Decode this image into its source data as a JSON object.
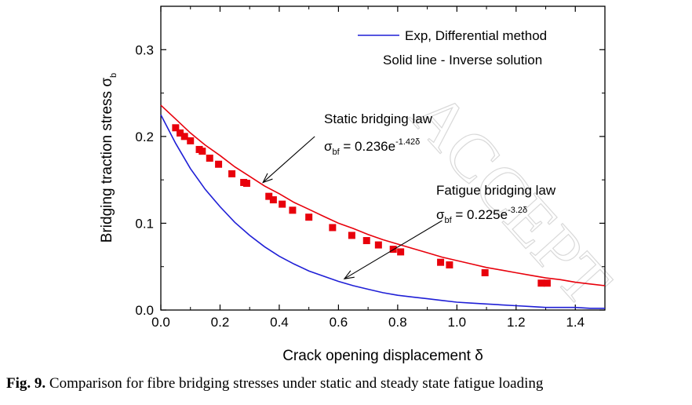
{
  "chart_data": {
    "type": "scatter",
    "xlabel": "Crack opening displacement δ",
    "ylabel": "Bridging traction stress σ",
    "ylabel_sub": "b",
    "xlim": [
      0.0,
      1.5
    ],
    "ylim": [
      0.0,
      0.35
    ],
    "xticks": [
      "0.0",
      "0.2",
      "0.4",
      "0.6",
      "0.8",
      "1.0",
      "1.2",
      "1.4"
    ],
    "xtick_values": [
      0.0,
      0.2,
      0.4,
      0.6,
      0.8,
      1.0,
      1.2,
      1.4
    ],
    "yticks": [
      "0.0",
      "0.1",
      "0.2",
      "0.3"
    ],
    "ytick_values": [
      0.0,
      0.1,
      0.2,
      0.3
    ],
    "grid": false,
    "legend": {
      "position": "top-right",
      "line1": "Exp, Differential method",
      "line2": "Solid line - Inverse solution"
    },
    "series": [
      {
        "kind": "line",
        "color": "#e8000b",
        "law": "static",
        "x": [
          0.0,
          0.05,
          0.1,
          0.15,
          0.2,
          0.25,
          0.3,
          0.35,
          0.4,
          0.45,
          0.5,
          0.55,
          0.6,
          0.65,
          0.7,
          0.75,
          0.8,
          0.85,
          0.9,
          0.95,
          1.0,
          1.05,
          1.1,
          1.15,
          1.2,
          1.25,
          1.3,
          1.35,
          1.4,
          1.45,
          1.5
        ],
        "values": [
          0.236,
          0.22,
          0.204,
          0.19,
          0.178,
          0.165,
          0.154,
          0.143,
          0.134,
          0.124,
          0.116,
          0.108,
          0.1,
          0.094,
          0.087,
          0.081,
          0.076,
          0.071,
          0.066,
          0.061,
          0.057,
          0.053,
          0.049,
          0.046,
          0.043,
          0.04,
          0.037,
          0.035,
          0.032,
          0.03,
          0.028
        ]
      },
      {
        "kind": "line",
        "color": "#1f1fd6",
        "law": "fatigue",
        "x": [
          0.0,
          0.05,
          0.1,
          0.15,
          0.2,
          0.25,
          0.3,
          0.35,
          0.4,
          0.45,
          0.5,
          0.55,
          0.6,
          0.65,
          0.7,
          0.75,
          0.8,
          0.85,
          0.9,
          0.95,
          1.0,
          1.05,
          1.1,
          1.15,
          1.2,
          1.25,
          1.3,
          1.35,
          1.4,
          1.45,
          1.5
        ],
        "values": [
          0.225,
          0.192,
          0.163,
          0.139,
          0.119,
          0.101,
          0.086,
          0.073,
          0.062,
          0.053,
          0.045,
          0.039,
          0.033,
          0.028,
          0.024,
          0.02,
          0.017,
          0.015,
          0.013,
          0.011,
          0.009,
          0.008,
          0.007,
          0.006,
          0.005,
          0.004,
          0.003,
          0.003,
          0.003,
          0.002,
          0.002
        ]
      },
      {
        "kind": "scatter",
        "color": "#e8000b",
        "marker": "square",
        "x": [
          0.05,
          0.065,
          0.08,
          0.1,
          0.13,
          0.14,
          0.165,
          0.195,
          0.24,
          0.28,
          0.29,
          0.365,
          0.38,
          0.41,
          0.445,
          0.5,
          0.58,
          0.645,
          0.695,
          0.735,
          0.785,
          0.81,
          0.945,
          0.975,
          1.095,
          1.285,
          1.305
        ],
        "values": [
          0.21,
          0.204,
          0.2,
          0.195,
          0.185,
          0.183,
          0.175,
          0.168,
          0.157,
          0.147,
          0.146,
          0.131,
          0.127,
          0.122,
          0.115,
          0.107,
          0.095,
          0.086,
          0.08,
          0.075,
          0.07,
          0.067,
          0.055,
          0.052,
          0.043,
          0.031,
          0.031
        ]
      }
    ],
    "annotations": [
      {
        "id": "static",
        "title": "Static bridging law",
        "eq_sym": "σ",
        "eq_sub": "bf",
        "eq_main": " = 0.236e",
        "eq_sup": "-1.42δ",
        "arrow_from": [
          0.52,
          0.2
        ],
        "arrow_to": [
          0.345,
          0.147
        ]
      },
      {
        "id": "fatigue",
        "title": "Fatigue bridging law",
        "eq_sym": "σ",
        "eq_sub": "bf",
        "eq_main": " = 0.225e",
        "eq_sup": "-3.2δ",
        "arrow_from": [
          0.95,
          0.103
        ],
        "arrow_to": [
          0.62,
          0.036
        ]
      }
    ]
  },
  "caption": {
    "label": "Fig. 9.",
    "text": "  Comparison for fibre bridging stresses under static and steady state fatigue loading"
  },
  "watermark": "ACCEPT"
}
